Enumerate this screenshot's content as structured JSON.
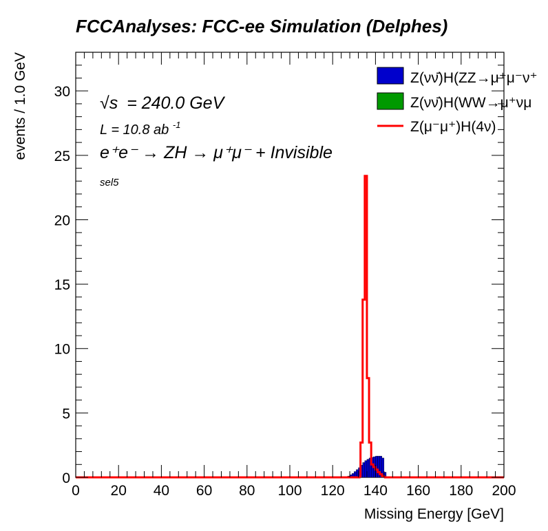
{
  "title": "FCCAnalyses: FCC-ee Simulation (Delphes)",
  "annotations": {
    "sqrt_s_symbol": "√s",
    "energy": "= 240.0 GeV",
    "lumi_prefix": "L = 10.8 ab",
    "lumi_exp": "-1",
    "process_prefix": "e",
    "process": "e⁺e⁻ → ZH → μ⁺μ⁻ + Invisible",
    "selection": "sel5"
  },
  "chart_data": {
    "type": "histogram",
    "xlabel": "Missing Energy [GeV]",
    "ylabel": "events / 1.0 GeV",
    "xlim": [
      0,
      200
    ],
    "ylim": [
      0,
      33
    ],
    "xticks": [
      0,
      20,
      40,
      60,
      80,
      100,
      120,
      140,
      160,
      180,
      200
    ],
    "yticks": [
      0,
      5,
      10,
      15,
      20,
      25,
      30
    ],
    "bin_width": 1.0,
    "legend_position": "top-right",
    "stacked_series": [
      {
        "name": "Z(νν̄)H(ZZ→μ⁺μ⁻ν⁺ν⁻)",
        "legend_label": "Z(νν̄)H(ZZ→μ⁺μ⁻ν⁺",
        "color": "#0000cc",
        "bins": [
          [
            126,
            0.05
          ],
          [
            127,
            0.1
          ],
          [
            128,
            0.2
          ],
          [
            129,
            0.3
          ],
          [
            130,
            0.45
          ],
          [
            131,
            0.6
          ],
          [
            132,
            0.75
          ],
          [
            133,
            0.95
          ],
          [
            134,
            1.15
          ],
          [
            135,
            1.3
          ],
          [
            136,
            1.4
          ],
          [
            137,
            1.5
          ],
          [
            138,
            1.55
          ],
          [
            139,
            1.6
          ],
          [
            140,
            1.65
          ],
          [
            141,
            1.65
          ],
          [
            142,
            1.65
          ],
          [
            143,
            1.5
          ],
          [
            144,
            0.4
          ]
        ]
      },
      {
        "name": "Z(νν̄)H(WW→μ⁺νμ⁻ν)",
        "legend_label": "Z(νν̄)H(WW→μ⁺νμ",
        "color": "#009900",
        "bins": []
      }
    ],
    "line_series": [
      {
        "name": "Z(μ⁻μ⁺)H(4ν)",
        "legend_label": "Z(μ⁻μ⁺)H(4ν)",
        "color": "#ff0000",
        "bins": [
          [
            133,
            2.7
          ],
          [
            134,
            13.8
          ],
          [
            135,
            23.4
          ],
          [
            136,
            7.7
          ],
          [
            137,
            2.7
          ],
          [
            138,
            1.0
          ],
          [
            139,
            0.8
          ],
          [
            140,
            0.6
          ],
          [
            141,
            0.4
          ],
          [
            142,
            0.25
          ],
          [
            143,
            0.1
          ]
        ]
      }
    ]
  }
}
